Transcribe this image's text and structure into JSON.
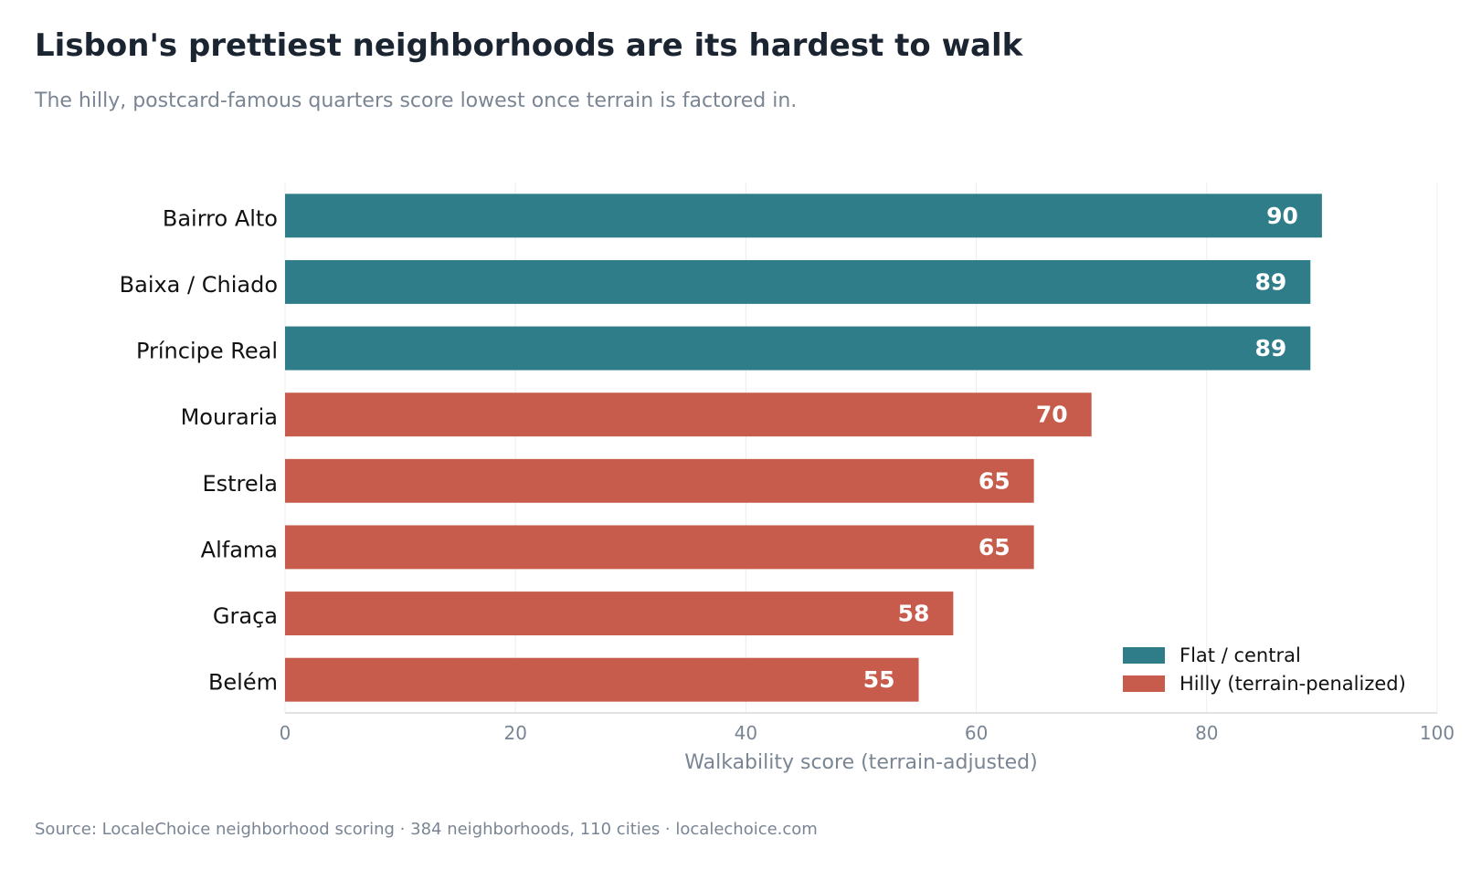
{
  "title": "Lisbon's prettiest neighborhoods are its hardest to walk",
  "subtitle": "The hilly, postcard-famous quarters score lowest once terrain is factored in.",
  "source": "Source: LocaleChoice neighborhood scoring · 384 neighborhoods, 110 cities  ·  localechoice.com",
  "chart_data": {
    "type": "bar",
    "orientation": "horizontal",
    "categories": [
      "Bairro Alto",
      "Baixa / Chiado",
      "Príncipe Real",
      "Mouraria",
      "Estrela",
      "Alfama",
      "Graça",
      "Belém"
    ],
    "values": [
      90,
      89,
      89,
      70,
      65,
      65,
      58,
      55
    ],
    "groups": [
      "Flat / central",
      "Flat / central",
      "Flat / central",
      "Hilly (terrain-penalized)",
      "Hilly (terrain-penalized)",
      "Hilly (terrain-penalized)",
      "Hilly (terrain-penalized)",
      "Hilly (terrain-penalized)"
    ],
    "legend": [
      {
        "name": "Flat / central",
        "color": "#2f7d89"
      },
      {
        "name": "Hilly (terrain-penalized)",
        "color": "#c75c4c"
      }
    ],
    "legend_position": "bottom-right",
    "xlabel": "Walkability score (terrain-adjusted)",
    "ylabel": "",
    "xlim": [
      0,
      100
    ],
    "xticks": [
      0,
      20,
      40,
      60,
      80,
      100
    ],
    "grid": "vertical",
    "data_labels": true
  }
}
